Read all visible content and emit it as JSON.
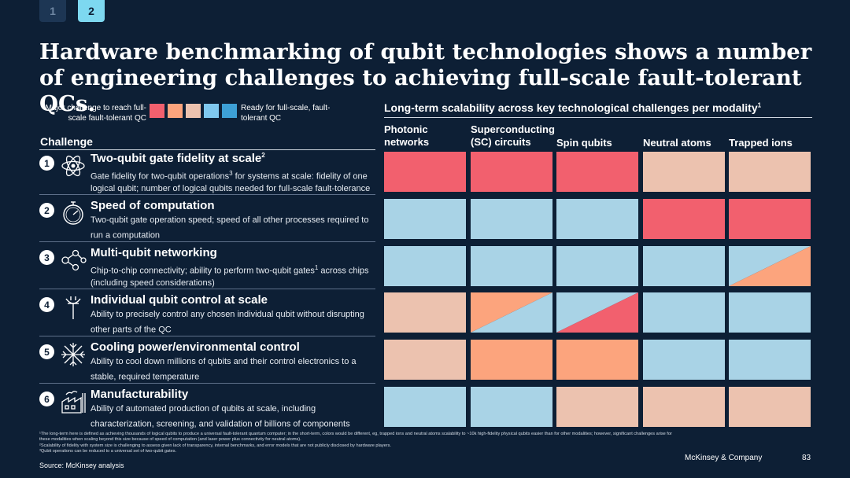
{
  "tabs": [
    "1",
    "2"
  ],
  "title": "Hardware benchmarking of qubit technologies shows a number of engineering challenges to achieving full-scale fault-tolerant QCs.",
  "legend": {
    "left_label": "Major challenge to reach full-scale fault-tolerant QC",
    "right_label": "Ready for full-scale, fault-tolerant QC",
    "colors": [
      "#f2606e",
      "#fca47d",
      "#ecc2af",
      "#7fc8ef",
      "#3da0d6"
    ]
  },
  "challenge_header": "Challenge",
  "right_header": {
    "text": "Long-term scalability across key technological challenges per modality",
    "sup": "1"
  },
  "columns": [
    {
      "line1": "Photonic",
      "line2": "networks"
    },
    {
      "line1": "Superconducting",
      "line2": "(SC) circuits"
    },
    {
      "line1": "",
      "line2": "Spin qubits"
    },
    {
      "line1": "",
      "line2": "Neutral atoms"
    },
    {
      "line1": "",
      "line2": "Trapped ions"
    }
  ],
  "challenges": [
    {
      "num": "1",
      "icon": "atom-icon",
      "title": "Two-qubit gate fidelity at scale",
      "title_sup": "2",
      "desc_pre": "Gate fidelity for two-qubit operations",
      "desc_sup": "3",
      "desc_post": " for systems at scale: fidelity of one logical qubit; number of logical qubits needed for full-scale fault-tolerance"
    },
    {
      "num": "2",
      "icon": "stopwatch-icon",
      "title": "Speed of computation",
      "title_sup": "",
      "desc_pre": "Two-qubit gate operation speed; speed of all other processes required to run a computation",
      "desc_sup": "",
      "desc_post": ""
    },
    {
      "num": "3",
      "icon": "network-icon",
      "title": "Multi-qubit networking",
      "title_sup": "",
      "desc_pre": "Chip-to-chip connectivity; ability to perform two-qubit gates",
      "desc_sup": "1",
      "desc_post": " across chips (including speed considerations)"
    },
    {
      "num": "4",
      "icon": "antenna-icon",
      "title": "Individual qubit control at scale",
      "title_sup": "",
      "desc_pre": "Ability to precisely control any chosen individual qubit without disrupting other parts of the QC",
      "desc_sup": "",
      "desc_post": ""
    },
    {
      "num": "5",
      "icon": "snowflake-icon",
      "title": "Cooling power/environmental control",
      "title_sup": "",
      "desc_pre": "Ability to cool down millions of qubits and their control electronics to a stable, required temperature",
      "desc_sup": "",
      "desc_post": ""
    },
    {
      "num": "6",
      "icon": "factory-icon",
      "title": "Manufacturability",
      "title_sup": "",
      "desc_pre": "Ability of automated production of qubits at scale, including characterization, screening, and validation of billions of components",
      "desc_sup": "",
      "desc_post": ""
    }
  ],
  "grid": [
    [
      [
        "#f2606e"
      ],
      [
        "#f2606e"
      ],
      [
        "#f2606e"
      ],
      [
        "#ecc2af"
      ],
      [
        "#ecc2af"
      ]
    ],
    [
      [
        "#a9d3e6"
      ],
      [
        "#a9d3e6"
      ],
      [
        "#a9d3e6"
      ],
      [
        "#f2606e"
      ],
      [
        "#f2606e"
      ]
    ],
    [
      [
        "#a9d3e6"
      ],
      [
        "#a9d3e6"
      ],
      [
        "#a9d3e6"
      ],
      [
        "#a9d3e6"
      ],
      [
        "#a9d3e6",
        "#fca47d"
      ]
    ],
    [
      [
        "#ecc2af"
      ],
      [
        "#fca47d",
        "#a9d3e6"
      ],
      [
        "#a9d3e6",
        "#f2606e"
      ],
      [
        "#a9d3e6"
      ],
      [
        "#a9d3e6"
      ]
    ],
    [
      [
        "#ecc2af"
      ],
      [
        "#fca47d"
      ],
      [
        "#fca47d"
      ],
      [
        "#a9d3e6"
      ],
      [
        "#a9d3e6"
      ]
    ],
    [
      [
        "#a9d3e6"
      ],
      [
        "#a9d3e6"
      ],
      [
        "#ecc2af"
      ],
      [
        "#ecc2af"
      ],
      [
        "#ecc2af"
      ]
    ]
  ],
  "footnotes": [
    "¹The long-term here is defined as achieving thousands of logical qubits to produce a universal fault-tolerant quantum computer; in the short-term, colors would be different, eg, trapped ions and neutral atoms scalability to ~10k high-fidelity physical qubits easier than for other modalities; however, significant challenges arise for",
    "   these modalities when scaling beyond this size because of speed of computation (and laser power plus connectivity for neutral atoms).",
    "²Scalability of fidelity with system size is challenging to assess given lack of transparency, internal benchmarks, and error models that are not publicly disclosed by hardware players.",
    "³Qubit operations can be reduced to a universal set of two-qubit gates."
  ],
  "source": "Source: McKinsey analysis",
  "brand": "McKinsey & Company",
  "page_number": "83"
}
